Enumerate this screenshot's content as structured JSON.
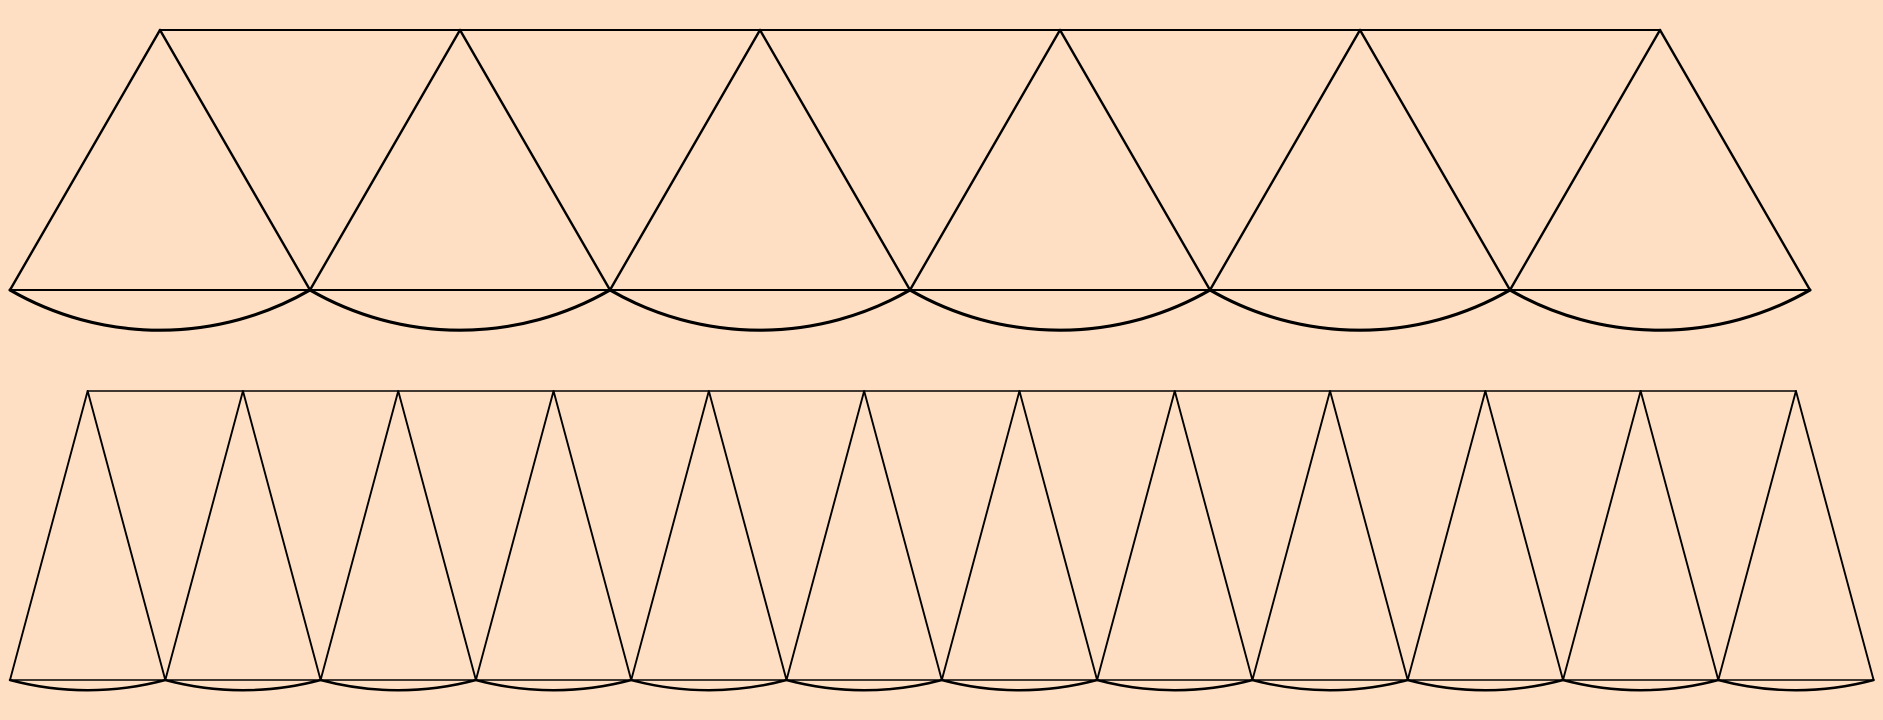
{
  "figure": {
    "background": "#FFDFC3",
    "stroke_color": "#000000",
    "description_label": "",
    "rows": [
      {
        "id": "row-6",
        "sectors": 6,
        "arc_type": "circular"
      },
      {
        "id": "row-12",
        "sectors": 12,
        "arc_type": "circular"
      }
    ]
  }
}
